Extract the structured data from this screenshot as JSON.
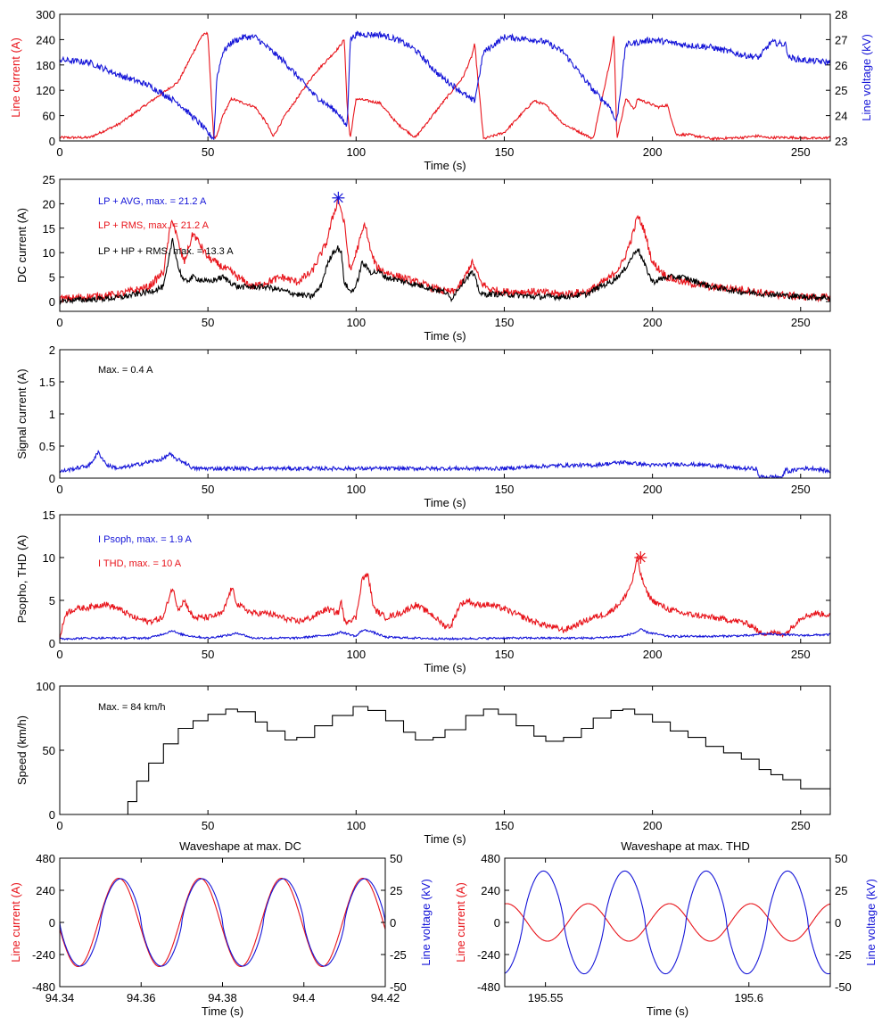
{
  "colors": {
    "red": "#e8141b",
    "blue": "#1515d8",
    "black": "#000000"
  },
  "chart_data": [
    {
      "id": "p1",
      "type": "line",
      "xlabel": "Time (s)",
      "ylabel": "Line current (A)",
      "y2label": "Line voltage (kV)",
      "xlim": [
        0,
        260
      ],
      "ylim": [
        0,
        300
      ],
      "y2lim": [
        23,
        28
      ],
      "xticks": [
        "0",
        "50",
        "100",
        "150",
        "200",
        "250"
      ],
      "yticks": [
        "0",
        "60",
        "120",
        "180",
        "240",
        "300"
      ],
      "y2ticks": [
        "23",
        "24",
        "25",
        "26",
        "27",
        "28"
      ],
      "series": [
        {
          "color": "red",
          "axis": "left",
          "noise": 3,
          "x": [
            0,
            10,
            20,
            30,
            40,
            48,
            50,
            51,
            52,
            53,
            55,
            58,
            66,
            70,
            72,
            76,
            86,
            94,
            96,
            97,
            98,
            100,
            108,
            114,
            120,
            128,
            136,
            139,
            140,
            143,
            150,
            160,
            164,
            170,
            180,
            186,
            187,
            188,
            191,
            194,
            195,
            202,
            205,
            208,
            212,
            220,
            230,
            236,
            238,
            248,
            255,
            260
          ],
          "y": [
            8,
            8,
            40,
            90,
            140,
            250,
            255,
            120,
            6,
            10,
            60,
            100,
            80,
            40,
            10,
            60,
            160,
            220,
            240,
            80,
            5,
            100,
            90,
            40,
            8,
            80,
            150,
            200,
            230,
            5,
            20,
            95,
            85,
            40,
            5,
            200,
            250,
            5,
            100,
            75,
            100,
            80,
            85,
            15,
            15,
            5,
            8,
            12,
            8,
            8,
            6,
            8
          ]
        },
        {
          "color": "blue",
          "axis": "right",
          "noise": 0.12,
          "x": [
            0,
            10,
            20,
            30,
            40,
            48,
            50,
            52,
            53,
            55,
            58,
            62,
            66,
            70,
            76,
            86,
            94,
            96,
            97,
            98,
            100,
            108,
            114,
            120,
            128,
            136,
            139,
            140,
            143,
            150,
            160,
            164,
            170,
            180,
            186,
            187,
            188,
            191,
            200,
            210,
            220,
            230,
            236,
            240,
            245,
            246,
            250,
            260
          ],
          "y": [
            26.2,
            26.1,
            25.6,
            25.2,
            24.5,
            23.6,
            23.3,
            23.1,
            25.5,
            26.5,
            26.9,
            27.1,
            27.1,
            26.7,
            26.1,
            24.8,
            24.1,
            23.7,
            23.6,
            27.0,
            27.2,
            27.2,
            27.0,
            26.6,
            25.6,
            24.9,
            24.6,
            24.6,
            26.5,
            27.1,
            27.0,
            26.9,
            26.5,
            25.0,
            24.3,
            23.9,
            23.8,
            26.8,
            27.0,
            26.8,
            26.7,
            26.4,
            26.3,
            26.9,
            26.8,
            26.3,
            26.2,
            26.1
          ]
        }
      ]
    },
    {
      "id": "p2",
      "type": "line",
      "xlabel": "Time (s)",
      "ylabel": "DC current (A)",
      "xlim": [
        0,
        260
      ],
      "ylim": [
        -2,
        25
      ],
      "xticks": [
        "0",
        "50",
        "100",
        "150",
        "200",
        "250"
      ],
      "yticks": [
        "0",
        "5",
        "10",
        "15",
        "20",
        "25"
      ],
      "annotations": [
        {
          "text": "LP + AVG, max. = 21.2 A",
          "color": "blue"
        },
        {
          "text": "LP + RMS, max. = 21.2 A",
          "color": "red"
        },
        {
          "text": "LP + HP + RMS, max. = 13.3 A",
          "color": "black"
        }
      ],
      "marker": {
        "x": 94,
        "y": 21.2,
        "color": "blue"
      },
      "series": [
        {
          "color": "red",
          "noise": 0.8,
          "x": [
            0,
            10,
            20,
            30,
            35,
            37,
            38,
            40,
            42,
            45,
            50,
            55,
            58,
            60,
            65,
            70,
            75,
            80,
            85,
            90,
            92,
            94,
            96,
            98,
            100,
            103,
            105,
            107,
            110,
            115,
            120,
            125,
            130,
            133,
            136,
            139,
            140,
            142,
            145,
            150,
            160,
            170,
            178,
            182,
            186,
            190,
            193,
            195,
            197,
            200,
            205,
            210,
            220,
            230,
            240,
            250,
            260
          ],
          "y": [
            0.5,
            1,
            1.5,
            3,
            6,
            14,
            17,
            12,
            8,
            14,
            9,
            7,
            6,
            5,
            3,
            4,
            5,
            4,
            6,
            12,
            17,
            21,
            16,
            6,
            10,
            16,
            10,
            7,
            6,
            5,
            4,
            3,
            2,
            2,
            4,
            8,
            7,
            4,
            2.5,
            2,
            2,
            1.5,
            2,
            3.5,
            5,
            8,
            13,
            17.5,
            15,
            8,
            5,
            4,
            3,
            2.5,
            1.5,
            1,
            0.8
          ]
        },
        {
          "color": "black",
          "noise": 0.6,
          "x": [
            0,
            10,
            20,
            30,
            35,
            37,
            38,
            40,
            42,
            45,
            50,
            55,
            60,
            65,
            70,
            80,
            85,
            88,
            90,
            92,
            94,
            95,
            96,
            98,
            100,
            102,
            105,
            108,
            110,
            120,
            130,
            132,
            136,
            139,
            140,
            142,
            150,
            160,
            170,
            178,
            182,
            186,
            190,
            193,
            195,
            197,
            200,
            205,
            210,
            220,
            230,
            240,
            250,
            260
          ],
          "y": [
            0.2,
            0.4,
            0.8,
            2,
            3,
            9,
            13,
            7,
            4,
            5,
            4,
            5,
            3,
            3,
            3,
            1.5,
            1,
            3,
            7,
            10,
            11,
            10,
            4,
            2,
            3,
            8,
            6,
            6,
            5,
            3.5,
            2,
            0.5,
            4,
            6,
            5,
            1.5,
            1.5,
            1,
            1,
            1.5,
            3,
            4,
            6,
            9,
            11,
            8,
            4,
            5,
            5,
            3,
            2,
            1.5,
            1,
            0.8
          ]
        }
      ]
    },
    {
      "id": "p3",
      "type": "line",
      "xlabel": "Time (s)",
      "ylabel": "Signal current (A)",
      "xlim": [
        0,
        260
      ],
      "ylim": [
        0,
        2
      ],
      "xticks": [
        "0",
        "50",
        "100",
        "150",
        "200",
        "250"
      ],
      "yticks": [
        "0",
        "0.5",
        "1",
        "1.5",
        "2"
      ],
      "annotations": [
        {
          "text": "Max. = 0.4 A",
          "color": "black"
        }
      ],
      "series": [
        {
          "color": "blue",
          "noise": 0.03,
          "x": [
            0,
            5,
            10,
            13,
            16,
            20,
            30,
            35,
            37,
            39,
            42,
            45,
            50,
            60,
            70,
            80,
            90,
            100,
            110,
            120,
            130,
            140,
            150,
            160,
            170,
            180,
            190,
            200,
            210,
            220,
            230,
            235,
            236,
            240,
            244,
            245,
            246,
            250,
            255,
            260
          ],
          "y": [
            0.1,
            0.15,
            0.2,
            0.4,
            0.2,
            0.15,
            0.25,
            0.3,
            0.38,
            0.3,
            0.25,
            0.15,
            0.15,
            0.15,
            0.15,
            0.15,
            0.15,
            0.15,
            0.15,
            0.15,
            0.15,
            0.15,
            0.15,
            0.18,
            0.2,
            0.2,
            0.25,
            0.2,
            0.22,
            0.2,
            0.15,
            0.15,
            0.02,
            0.02,
            0.02,
            0.15,
            0.1,
            0.15,
            0.15,
            0.1
          ]
        }
      ]
    },
    {
      "id": "p4",
      "type": "line",
      "xlabel": "Time (s)",
      "ylabel": "Psopho, THD (A)",
      "xlim": [
        0,
        260
      ],
      "ylim": [
        0,
        15
      ],
      "xticks": [
        "0",
        "50",
        "100",
        "150",
        "200",
        "250"
      ],
      "yticks": [
        "0",
        "5",
        "10",
        "15"
      ],
      "annotations": [
        {
          "text": "I Psoph, max. = 1.9 A",
          "color": "blue"
        },
        {
          "text": "I THD, max. = 10 A",
          "color": "red"
        }
      ],
      "marker": {
        "x": 196,
        "y": 10,
        "color": "red"
      },
      "series": [
        {
          "color": "red",
          "noise": 0.35,
          "x": [
            0,
            2,
            5,
            10,
            15,
            20,
            25,
            30,
            35,
            37,
            38,
            40,
            42,
            45,
            50,
            55,
            58,
            60,
            65,
            70,
            75,
            80,
            85,
            90,
            94,
            95,
            96,
            100,
            102,
            104,
            106,
            110,
            115,
            120,
            125,
            130,
            132,
            135,
            138,
            140,
            145,
            150,
            160,
            170,
            180,
            185,
            190,
            193,
            195,
            196,
            198,
            200,
            205,
            210,
            220,
            230,
            234,
            236,
            240,
            245,
            250,
            255,
            260
          ],
          "y": [
            0.5,
            3.5,
            4,
            4.2,
            4.6,
            4,
            3,
            2.5,
            3,
            5.5,
            6.5,
            4,
            5,
            3,
            3,
            3.5,
            6.5,
            4.5,
            3.5,
            3.5,
            3,
            2.5,
            3,
            4,
            3.5,
            5,
            2.5,
            3,
            7.5,
            8,
            4,
            3,
            3.5,
            4.5,
            3.5,
            2,
            2,
            4.5,
            5,
            4.5,
            4.5,
            4,
            2.5,
            1.5,
            3,
            3.5,
            5,
            7,
            10,
            8,
            6,
            5,
            4,
            3.5,
            3,
            2.5,
            2,
            1.2,
            1.2,
            1.1,
            3,
            3.5,
            3.3
          ]
        },
        {
          "color": "blue",
          "noise": 0.12,
          "x": [
            0,
            10,
            20,
            30,
            36,
            38,
            40,
            45,
            50,
            58,
            60,
            65,
            80,
            92,
            95,
            100,
            102,
            104,
            110,
            130,
            150,
            170,
            180,
            190,
            194,
            196,
            198,
            205,
            220,
            234,
            236,
            245,
            250,
            260
          ],
          "y": [
            0.5,
            0.6,
            0.6,
            0.6,
            1.2,
            1.5,
            1.1,
            0.8,
            0.6,
            1,
            1.2,
            0.6,
            0.6,
            1,
            1.3,
            0.8,
            1.5,
            1.5,
            0.7,
            0.5,
            0.6,
            0.6,
            0.6,
            0.8,
            1.2,
            1.6,
            1.3,
            0.8,
            0.8,
            0.9,
            1.1,
            1,
            0.9,
            1
          ]
        }
      ]
    },
    {
      "id": "p5",
      "type": "line",
      "xlabel": "Time (s)",
      "ylabel": "Speed (km/h)",
      "xlim": [
        0,
        260
      ],
      "ylim": [
        0,
        100
      ],
      "xticks": [
        "0",
        "50",
        "100",
        "150",
        "200",
        "250"
      ],
      "yticks": [
        "0",
        "50",
        "100"
      ],
      "annotations": [
        {
          "text": "Max. = 84 km/h",
          "color": "black"
        }
      ],
      "series": [
        {
          "color": "black",
          "stairs": true,
          "x": [
            0,
            20,
            23,
            26,
            30,
            35,
            40,
            45,
            50,
            56,
            60,
            66,
            70,
            76,
            80,
            86,
            92,
            99,
            104,
            110,
            116,
            120,
            126,
            130,
            137,
            143,
            148,
            154,
            160,
            164,
            170,
            176,
            180,
            186,
            190,
            194,
            200,
            206,
            212,
            218,
            224,
            230,
            236,
            240,
            244,
            250,
            260
          ],
          "y": [
            0,
            0,
            10,
            26,
            40,
            55,
            67,
            73,
            78,
            82,
            80,
            72,
            65,
            58,
            60,
            69,
            77,
            84,
            81,
            73,
            64,
            58,
            60,
            66,
            77,
            82,
            78,
            69,
            61,
            57,
            60,
            67,
            75,
            81,
            82,
            78,
            72,
            65,
            60,
            53,
            48,
            43,
            35,
            31,
            27,
            20,
            14
          ]
        }
      ]
    },
    {
      "id": "p6",
      "type": "line",
      "title": "Waveshape at max. DC",
      "xlabel": "Time (s)",
      "ylabel": "Line current (A)",
      "y2label": "Line voltage (kV)",
      "xlim": [
        94.34,
        94.42
      ],
      "ylim": [
        -480,
        480
      ],
      "y2lim": [
        -50,
        50
      ],
      "xticks": [
        "94.34",
        "94.36",
        "94.38",
        "94.4",
        "94.42"
      ],
      "yticks": [
        "-480",
        "-240",
        "0",
        "240",
        "480"
      ],
      "y2ticks": [
        "-50",
        "-25",
        "0",
        "25",
        "50"
      ],
      "series": [
        {
          "color": "red",
          "axis": "left",
          "sine": {
            "amp": 330,
            "period": 0.02,
            "peak_at": 94.3545,
            "x0": 94.34,
            "x1": 94.42
          }
        },
        {
          "color": "blue",
          "axis": "right",
          "sine": {
            "amp": 34,
            "period": 0.02,
            "peak_at": 94.355,
            "x0": 94.34,
            "x1": 94.42,
            "peaky": true
          }
        }
      ]
    },
    {
      "id": "p7",
      "type": "line",
      "title": "Waveshape at max. THD",
      "xlabel": "Time (s)",
      "ylabel": "Line current (A)",
      "y2label": "Line voltage (kV)",
      "xlim": [
        195.54,
        195.62
      ],
      "ylim": [
        -480,
        480
      ],
      "y2lim": [
        -50,
        50
      ],
      "xticks": [
        "195.55",
        "195.6"
      ],
      "xtick_values": [
        195.55,
        195.6
      ],
      "yticks": [
        "-480",
        "-240",
        "0",
        "240",
        "480"
      ],
      "y2ticks": [
        "-50",
        "-25",
        "0",
        "25",
        "50"
      ],
      "series": [
        {
          "color": "red",
          "axis": "left",
          "sine": {
            "amp": 140,
            "period": 0.02,
            "peak_at": 195.5405,
            "x0": 195.54,
            "x1": 195.62
          }
        },
        {
          "color": "blue",
          "axis": "right",
          "sine": {
            "amp": 40,
            "period": 0.02,
            "peak_at": 195.5495,
            "x0": 195.54,
            "x1": 195.62,
            "peaky": true
          }
        }
      ]
    }
  ]
}
